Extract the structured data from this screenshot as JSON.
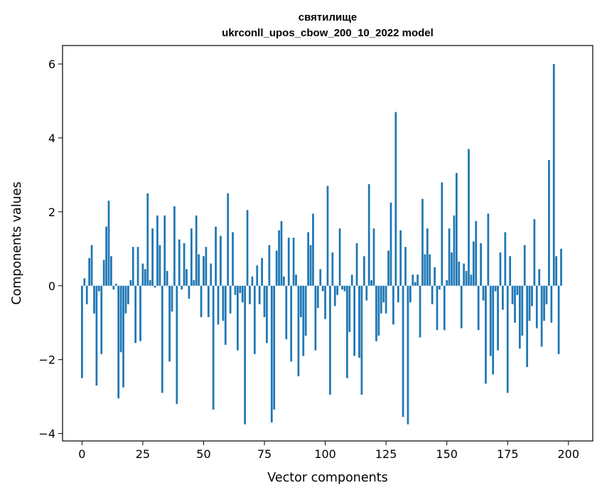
{
  "chart_data": {
    "type": "bar",
    "title": "святилище",
    "subtitle": "ukrconll_upos_cbow_200_10_2022 model",
    "xlabel": "Vector components",
    "ylabel": "Components values",
    "xlim": [
      -8,
      210
    ],
    "ylim": [
      -4.2,
      6.5
    ],
    "xticks": [
      0,
      25,
      50,
      75,
      100,
      125,
      150,
      175,
      200
    ],
    "yticks": [
      -4,
      -2,
      0,
      2,
      4,
      6
    ],
    "grid": false,
    "bar_color": "#1f77b4",
    "values": [
      -2.5,
      0.2,
      -0.5,
      0.75,
      1.1,
      -0.75,
      -2.7,
      -0.15,
      -1.85,
      0.7,
      1.6,
      2.3,
      0.8,
      -0.1,
      0.05,
      -3.05,
      -1.8,
      -2.75,
      -0.75,
      -0.5,
      0.15,
      1.05,
      -1.55,
      1.05,
      -1.5,
      0.6,
      0.45,
      2.5,
      0.15,
      1.55,
      -0.05,
      1.9,
      1.1,
      -2.9,
      1.9,
      0.4,
      -2.05,
      -0.7,
      2.15,
      -3.2,
      1.25,
      -0.1,
      1.15,
      0.45,
      -0.35,
      1.55,
      0.15,
      1.9,
      0.85,
      -0.85,
      0.8,
      1.05,
      -0.85,
      0.6,
      -3.35,
      1.6,
      -1.05,
      1.35,
      -0.95,
      -1.6,
      2.5,
      -0.75,
      1.45,
      -0.25,
      -1.75,
      -0.2,
      -0.45,
      -3.75,
      2.05,
      -0.5,
      0.25,
      -1.85,
      0.55,
      -0.5,
      0.75,
      -0.85,
      -1.55,
      1.1,
      -3.7,
      -3.35,
      0.95,
      1.5,
      1.75,
      0.25,
      -1.45,
      1.3,
      -2.05,
      1.3,
      0.3,
      -2.45,
      -0.85,
      -1.9,
      -1.35,
      1.45,
      1.1,
      1.95,
      -1.75,
      -0.6,
      0.45,
      -0.15,
      -0.9,
      2.7,
      -2.95,
      0.9,
      -0.55,
      -0.25,
      1.55,
      -0.1,
      -0.15,
      -2.5,
      -1.25,
      0.3,
      -1.9,
      1.15,
      -1.95,
      -2.95,
      0.8,
      -0.4,
      2.75,
      0.15,
      1.55,
      -1.5,
      -1.35,
      -0.75,
      -0.45,
      -0.75,
      0.95,
      2.25,
      -1.05,
      4.7,
      -0.45,
      1.5,
      -3.55,
      1.05,
      -3.75,
      -0.45,
      0.3,
      0.1,
      0.3,
      -1.4,
      2.35,
      0.85,
      1.55,
      0.85,
      -0.5,
      0.5,
      -1.2,
      -0.1,
      2.8,
      -1.2,
      0.15,
      1.55,
      0.9,
      1.9,
      3.05,
      0.65,
      -1.15,
      0.6,
      0.4,
      3.7,
      0.3,
      1.2,
      1.75,
      -1.2,
      1.15,
      -0.4,
      -2.65,
      1.95,
      -1.9,
      -2.4,
      -0.15,
      -1.75,
      0.9,
      -0.65,
      1.45,
      -2.9,
      0.8,
      -0.5,
      -1.0,
      -0.25,
      -1.7,
      -1.35,
      1.1,
      -2.2,
      -0.95,
      -0.55,
      1.8,
      -1.15,
      0.45,
      -1.65,
      -0.95,
      -0.5,
      3.4,
      -1.0,
      6.0,
      0.8,
      -1.85,
      1.0
    ]
  }
}
